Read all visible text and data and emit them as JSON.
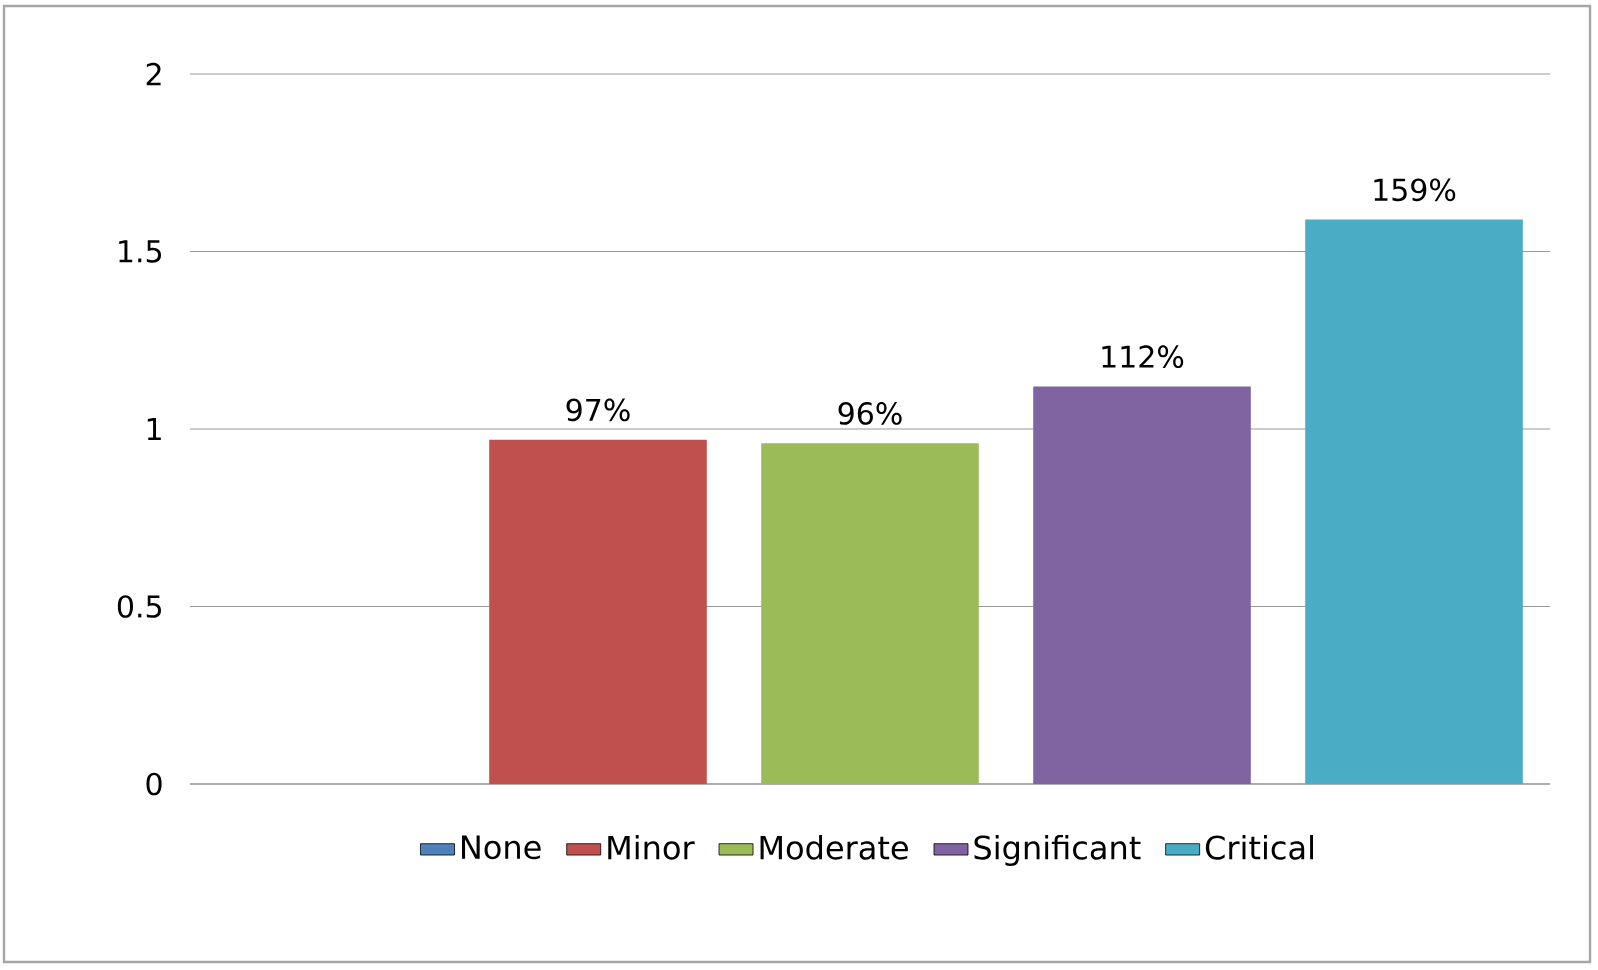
{
  "chart_data": {
    "type": "bar",
    "categories": [
      null,
      null,
      null,
      null,
      null
    ],
    "series": [
      {
        "name": "None",
        "color": "#4f81bd",
        "values": [
          0,
          null,
          null,
          null,
          null
        ],
        "value_labels": [
          null,
          null,
          null,
          null,
          null
        ]
      },
      {
        "name": "Minor",
        "color": "#c0504d",
        "values": [
          null,
          0.97,
          null,
          null,
          null
        ],
        "value_labels": [
          null,
          "97%",
          null,
          null,
          null
        ]
      },
      {
        "name": "Moderate",
        "color": "#9bbb59",
        "values": [
          null,
          null,
          0.96,
          null,
          null
        ],
        "value_labels": [
          null,
          null,
          "96%",
          null,
          null
        ]
      },
      {
        "name": "Significant",
        "color": "#8064a2",
        "values": [
          null,
          null,
          null,
          1.12,
          null
        ],
        "value_labels": [
          null,
          null,
          null,
          "112%",
          null
        ]
      },
      {
        "name": "Critical",
        "color": "#4bacc6",
        "values": [
          null,
          null,
          null,
          null,
          1.59
        ],
        "value_labels": [
          null,
          null,
          null,
          null,
          "159%"
        ]
      }
    ],
    "ylim": [
      0,
      2
    ],
    "yticks": [
      0,
      0.5,
      1,
      1.5,
      2
    ],
    "grid": "y",
    "legend": "bottom"
  }
}
